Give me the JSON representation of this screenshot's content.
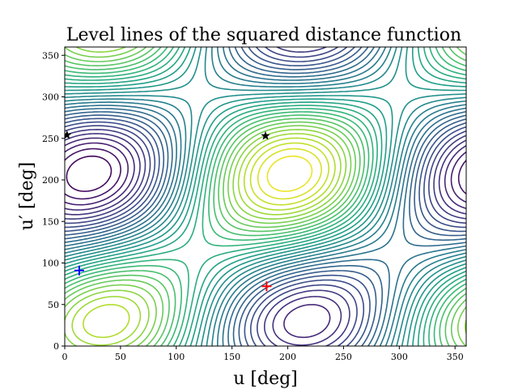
{
  "chart_data": {
    "type": "contour",
    "title": "Level lines of the squared distance function",
    "xlabel": "u [deg]",
    "ylabel": "u′ [deg]",
    "xlim": [
      0,
      360
    ],
    "ylim": [
      0,
      360
    ],
    "x_ticks": [
      0,
      50,
      100,
      150,
      200,
      250,
      300,
      350
    ],
    "y_ticks": [
      0,
      50,
      100,
      150,
      200,
      250,
      300,
      350
    ],
    "grid": false,
    "colormap": [
      "#440154",
      "#3b528b",
      "#21918c",
      "#5ec962",
      "#fde725"
    ],
    "markers": [
      {
        "type": "star",
        "u": 2,
        "u_prime": 254,
        "color": "#000000"
      },
      {
        "type": "star",
        "u": 180,
        "u_prime": 253,
        "color": "#000000"
      },
      {
        "type": "plus",
        "u": 13,
        "u_prime": 91,
        "color": "#0000ff"
      },
      {
        "type": "plus",
        "u": 181,
        "u_prime": 72,
        "color": "#ff0000"
      }
    ]
  }
}
